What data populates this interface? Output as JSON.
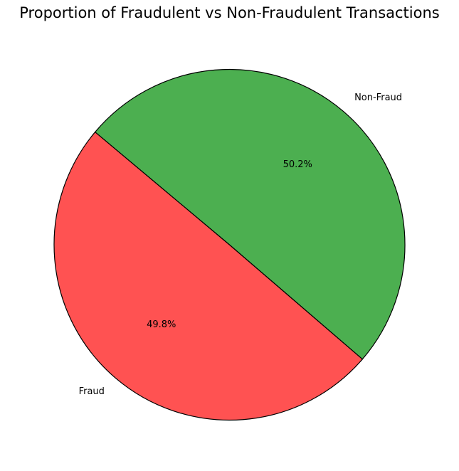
{
  "chart_data": {
    "type": "pie",
    "title": "Proportion of Fraudulent vs Non-Fraudulent Transactions",
    "labels": [
      "Fraud",
      "Non-Fraud"
    ],
    "values": [
      49.8,
      50.2
    ],
    "percent_labels": [
      "49.8%",
      "50.2%"
    ],
    "colors": [
      "#ff5252",
      "#4caf50"
    ],
    "edge_color": "#000000",
    "start_angle_deg": 140,
    "legend": "none"
  }
}
